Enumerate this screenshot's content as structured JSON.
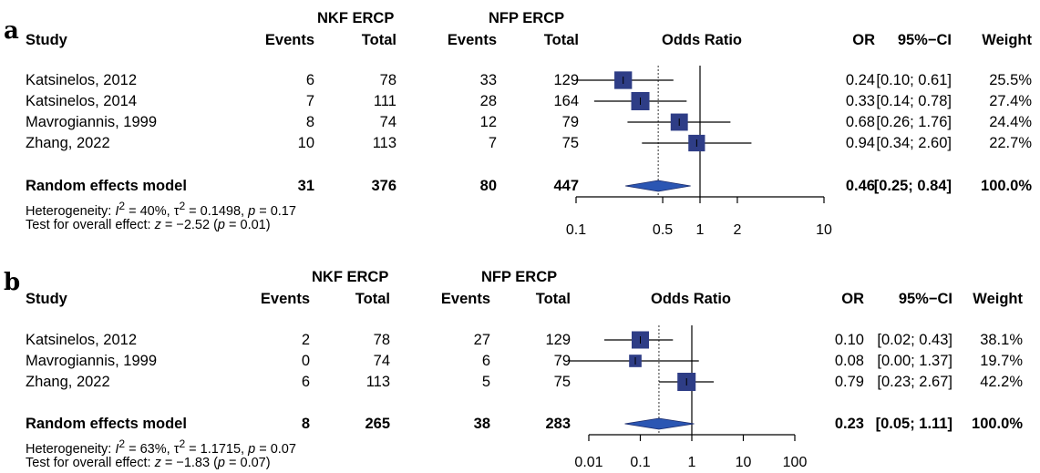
{
  "chart_data": [
    {
      "type": "forest",
      "panel_label": "a",
      "headers": {
        "group1": "NKF ERCP",
        "group2": "NFP ERCP",
        "study": "Study",
        "events1": "Events",
        "total1": "Total",
        "events2": "Events",
        "total2": "Total",
        "plot": "Odds Ratio",
        "or": "OR",
        "ci": "95%−CI",
        "weight": "Weight"
      },
      "studies": [
        {
          "name": "Katsinelos, 2012",
          "e1": "6",
          "n1": "78",
          "e2": "33",
          "n2": "129",
          "or_text": "0.24",
          "ci_text": "[0.10; 0.61]",
          "weight_text": "25.5%",
          "or": 0.24,
          "lo": 0.1,
          "hi": 0.61,
          "weight": 25.5
        },
        {
          "name": "Katsinelos, 2014",
          "e1": "7",
          "n1": "111",
          "e2": "28",
          "n2": "164",
          "or_text": "0.33",
          "ci_text": "[0.14; 0.78]",
          "weight_text": "27.4%",
          "or": 0.33,
          "lo": 0.14,
          "hi": 0.78,
          "weight": 27.4
        },
        {
          "name": "Mavrogiannis, 1999",
          "e1": "8",
          "n1": "74",
          "e2": "12",
          "n2": "79",
          "or_text": "0.68",
          "ci_text": "[0.26; 1.76]",
          "weight_text": "24.4%",
          "or": 0.68,
          "lo": 0.26,
          "hi": 1.76,
          "weight": 24.4
        },
        {
          "name": "Zhang, 2022",
          "e1": "10",
          "n1": "113",
          "e2": "7",
          "n2": "75",
          "or_text": "0.94",
          "ci_text": "[0.34; 2.60]",
          "weight_text": "22.7%",
          "or": 0.94,
          "lo": 0.34,
          "hi": 2.6,
          "weight": 22.7
        }
      ],
      "pooled": {
        "name": "Random effects model",
        "e1": "31",
        "n1": "376",
        "e2": "80",
        "n2": "447",
        "or_text": "0.46",
        "ci_text": "[0.25; 0.84]",
        "weight_text": "100.0%",
        "or": 0.46,
        "lo": 0.25,
        "hi": 0.84
      },
      "heterogeneity_parts": [
        "Heterogeneity: ",
        "I",
        "2",
        " = 40%, τ",
        "2",
        " = 0.1498, ",
        "p",
        " = 0.17"
      ],
      "overall_parts": [
        "Test for overall effect: ",
        "z",
        " = −2.52 (",
        "p",
        " = 0.01)"
      ],
      "x_scale": "log",
      "xlim": [
        0.1,
        10
      ],
      "ticks": [
        0.1,
        0.5,
        1,
        2,
        10
      ],
      "tick_labels": [
        "0.1",
        "0.5",
        "1",
        "2",
        "10"
      ],
      "null_line": 1,
      "colors": {
        "box": "#2e3d86",
        "diamond": "#2b56b3"
      }
    },
    {
      "type": "forest",
      "panel_label": "b",
      "headers": {
        "group1": "NKF ERCP",
        "group2": "NFP ERCP",
        "study": "Study",
        "events1": "Events",
        "total1": "Total",
        "events2": "Events",
        "total2": "Total",
        "plot": "Odds Ratio",
        "or": "OR",
        "ci": "95%−CI",
        "weight": "Weight"
      },
      "studies": [
        {
          "name": "Katsinelos, 2012",
          "e1": "2",
          "n1": "78",
          "e2": "27",
          "n2": "129",
          "or_text": "0.10",
          "ci_text": "[0.02; 0.43]",
          "weight_text": "38.1%",
          "or": 0.1,
          "lo": 0.02,
          "hi": 0.43,
          "weight": 38.1
        },
        {
          "name": "Mavrogiannis, 1999",
          "e1": "0",
          "n1": "74",
          "e2": "6",
          "n2": "79",
          "or_text": "0.08",
          "ci_text": "[0.00; 1.37]",
          "weight_text": "19.7%",
          "or": 0.08,
          "lo": 0.004,
          "hi": 1.37,
          "weight": 19.7
        },
        {
          "name": "Zhang, 2022",
          "e1": "6",
          "n1": "113",
          "e2": "5",
          "n2": "75",
          "or_text": "0.79",
          "ci_text": "[0.23; 2.67]",
          "weight_text": "42.2%",
          "or": 0.79,
          "lo": 0.23,
          "hi": 2.67,
          "weight": 42.2
        }
      ],
      "pooled": {
        "name": "Random effects model",
        "e1": "8",
        "n1": "265",
        "e2": "38",
        "n2": "283",
        "or_text": "0.23",
        "ci_text": "[0.05; 1.11]",
        "weight_text": "100.0%",
        "or": 0.23,
        "lo": 0.05,
        "hi": 1.11
      },
      "heterogeneity_parts": [
        "Heterogeneity: ",
        "I",
        "2",
        " = 63%, τ",
        "2",
        " = 1.1715, ",
        "p",
        " = 0.07"
      ],
      "overall_parts": [
        "Test for overall effect: ",
        "z",
        " = −1.83 (",
        "p",
        " = 0.07)"
      ],
      "x_scale": "log",
      "xlim": [
        0.01,
        100
      ],
      "ticks": [
        0.01,
        0.1,
        1,
        10,
        100
      ],
      "tick_labels": [
        "0.01",
        "0.1",
        "1",
        "10",
        "100"
      ],
      "null_line": 1,
      "colors": {
        "box": "#2e3d86",
        "diamond": "#2b56b3"
      }
    }
  ]
}
